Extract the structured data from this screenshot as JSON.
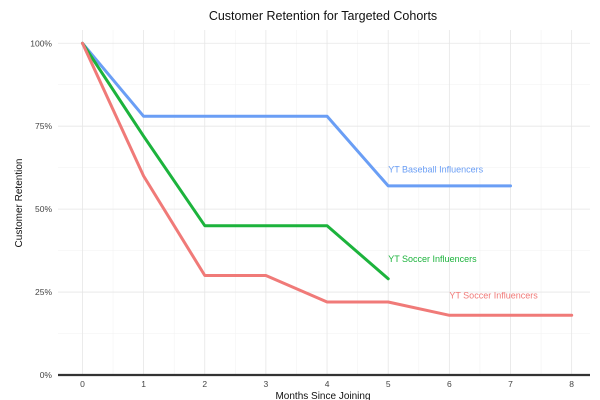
{
  "chart_data": {
    "type": "line",
    "title": "Customer Retention for Targeted Cohorts",
    "xlabel": "Months Since Joining",
    "ylabel": "Customer Retention",
    "xlim": [
      -0.4,
      8.3
    ],
    "ylim": [
      0,
      1.04
    ],
    "xticks": [
      0,
      1,
      2,
      3,
      4,
      5,
      6,
      7,
      8
    ],
    "xtick_labels": [
      "0",
      "1",
      "2",
      "3",
      "4",
      "5",
      "6",
      "7",
      "8"
    ],
    "yticks": [
      0,
      0.25,
      0.5,
      0.75,
      1.0
    ],
    "ytick_labels": [
      "0%",
      "25%",
      "50%",
      "75%",
      "100%"
    ],
    "grid": true,
    "legend": "none (direct labels)",
    "series": [
      {
        "name": "YT Baseball Influencers",
        "color": "#6a9ef5",
        "x": [
          0,
          1,
          2,
          3,
          4,
          5,
          6,
          7
        ],
        "y": [
          1.0,
          0.78,
          0.78,
          0.78,
          0.78,
          0.57,
          0.57,
          0.57
        ],
        "label_at": [
          5,
          0.61
        ]
      },
      {
        "name": "YT Soccer Influencers",
        "color": "#1cb33c",
        "x": [
          0,
          1,
          2,
          3,
          4,
          5
        ],
        "y": [
          1.0,
          0.72,
          0.45,
          0.45,
          0.45,
          0.29
        ],
        "label_at": [
          5,
          0.34
        ]
      },
      {
        "name": "YT Soccer Influencers",
        "color": "#f07a78",
        "x": [
          0,
          1,
          2,
          3,
          4,
          5,
          6,
          7,
          8
        ],
        "y": [
          1.0,
          0.6,
          0.3,
          0.3,
          0.22,
          0.22,
          0.18,
          0.18,
          0.18
        ],
        "label_at": [
          6,
          0.23
        ]
      }
    ]
  }
}
